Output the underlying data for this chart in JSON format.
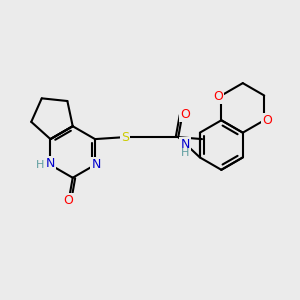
{
  "background_color": "#ebebeb",
  "bond_color": "#000000",
  "atom_colors": {
    "N": "#0000cc",
    "O": "#ff0000",
    "S": "#cccc00",
    "H": "#5f9ea0",
    "C": "#000000"
  },
  "figsize": [
    3.0,
    3.0
  ],
  "dpi": 100
}
